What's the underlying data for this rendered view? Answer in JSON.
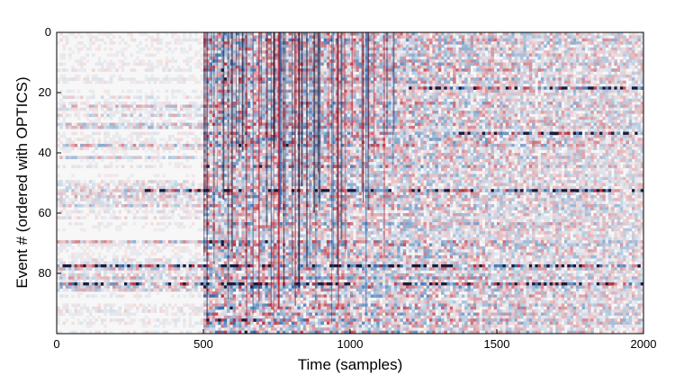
{
  "chart_data": {
    "type": "heatmap",
    "title": "",
    "xlabel": "Time (samples)",
    "ylabel": "Event # (ordered with OPTICS)",
    "xlim": [
      0,
      2000
    ],
    "ylim": [
      100,
      0
    ],
    "xticks": [
      0,
      500,
      1000,
      1500,
      2000
    ],
    "yticks": [
      0,
      20,
      40,
      60,
      80
    ],
    "colormap": "diverging red-white-blue",
    "n_events": 100,
    "n_samples": 2000,
    "signal_onset_sample": 500,
    "grid": false,
    "legend": "none",
    "colors": {
      "negative": "#1f5fa8",
      "neutral": "#f7f7f7",
      "positive": "#b2182b",
      "extreme": "#1a1a3a"
    },
    "bright_event_rows": [
      {
        "event": 18,
        "from_sample": 1200,
        "to_sample": 2000
      },
      {
        "event": 33,
        "from_sample": 1350,
        "to_sample": 2000
      },
      {
        "event": 52,
        "from_sample": 300,
        "to_sample": 2000
      },
      {
        "event": 77,
        "from_sample": 0,
        "to_sample": 2000
      },
      {
        "event": 83,
        "from_sample": 0,
        "to_sample": 2000
      }
    ]
  }
}
